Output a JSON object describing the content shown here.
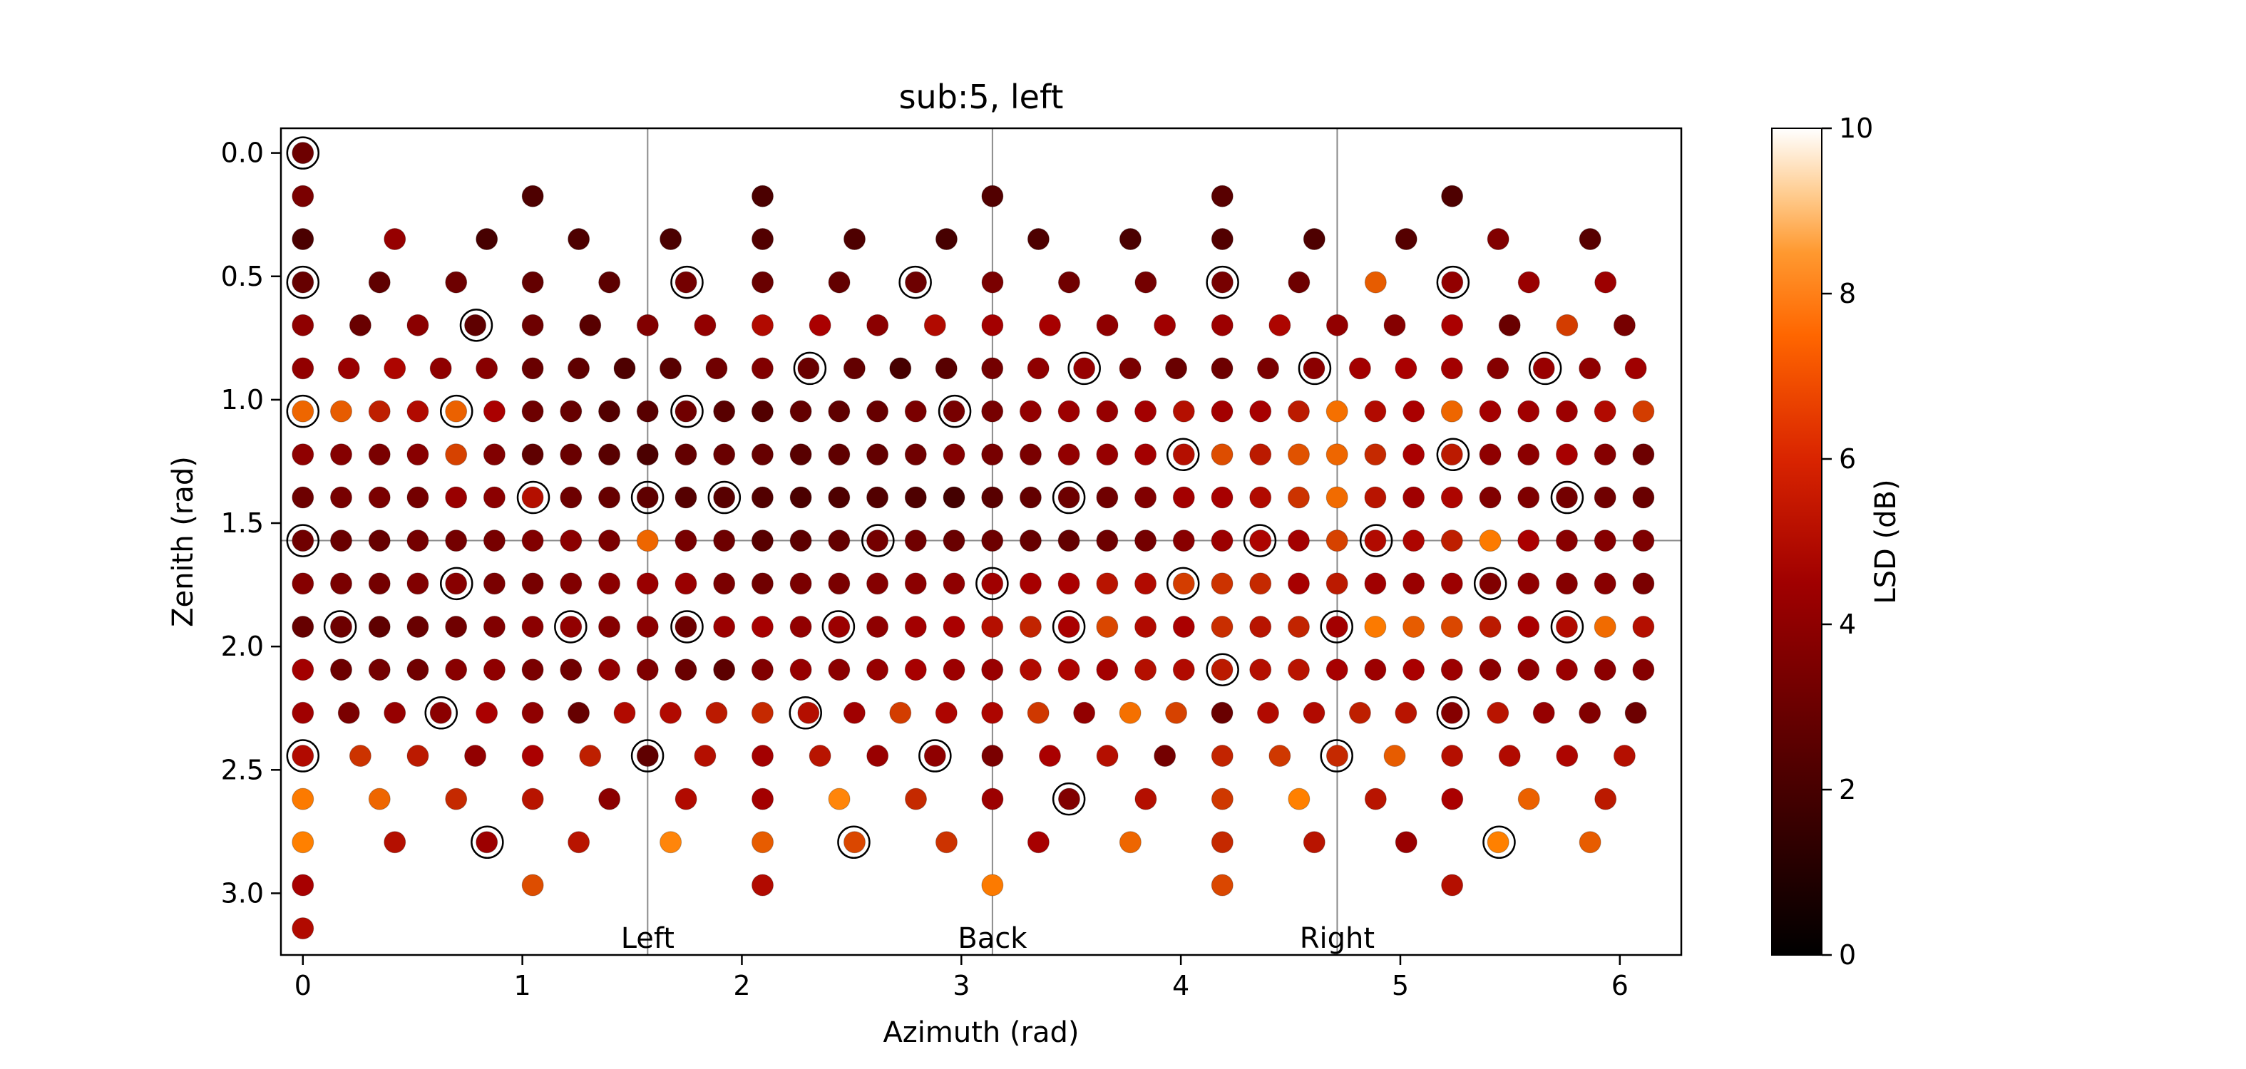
{
  "chart_data": {
    "type": "scatter",
    "title": "sub:5, left",
    "xlabel": "Azimuth (rad)",
    "ylabel": "Zenith (rad)",
    "xlim": [
      -0.1,
      6.28
    ],
    "ylim": [
      3.25,
      -0.1
    ],
    "y_inverted": true,
    "xticks": [
      0,
      1,
      2,
      3,
      4,
      5,
      6
    ],
    "yticks": [
      0.0,
      0.5,
      1.0,
      1.5,
      2.0,
      2.5,
      3.0
    ],
    "xtick_labels": [
      "0",
      "1",
      "2",
      "3",
      "4",
      "5",
      "6"
    ],
    "ytick_labels": [
      "0.0",
      "0.5",
      "1.0",
      "1.5",
      "2.0",
      "2.5",
      "3.0"
    ],
    "grid": false,
    "reference_lines": {
      "vertical": [
        1.5708,
        3.1416,
        4.7124
      ],
      "horizontal": [
        1.5708
      ]
    },
    "annotations": [
      {
        "text": "Left",
        "x": 1.5708,
        "y": 3.18
      },
      {
        "text": "Back",
        "x": 3.1416,
        "y": 3.18
      },
      {
        "text": "Right",
        "x": 4.7124,
        "y": 3.18
      }
    ],
    "colorbar": {
      "label": "LSD (dB)",
      "range": [
        0,
        10
      ],
      "ticks": [
        0,
        2,
        4,
        6,
        8,
        10
      ],
      "tick_labels": [
        "0",
        "2",
        "4",
        "6",
        "8",
        "10"
      ],
      "colormap": "gist_heat"
    },
    "highlighted_points": [
      [
        0.0,
        0.0
      ],
      [
        0.0,
        0.524
      ],
      [
        0.79,
        0.698
      ],
      [
        1.75,
        0.524
      ],
      [
        2.79,
        0.524
      ],
      [
        4.19,
        0.524
      ],
      [
        5.24,
        0.524
      ],
      [
        2.31,
        0.873
      ],
      [
        3.56,
        0.873
      ],
      [
        4.61,
        0.873
      ],
      [
        5.66,
        0.873
      ],
      [
        0.0,
        1.047
      ],
      [
        0.7,
        1.047
      ],
      [
        1.75,
        1.047
      ],
      [
        2.97,
        1.047
      ],
      [
        4.01,
        1.222
      ],
      [
        5.24,
        1.222
      ],
      [
        1.05,
        1.396
      ],
      [
        1.57,
        1.396
      ],
      [
        1.92,
        1.396
      ],
      [
        3.49,
        1.396
      ],
      [
        5.76,
        1.396
      ],
      [
        0.0,
        1.571
      ],
      [
        2.62,
        1.571
      ],
      [
        4.36,
        1.571
      ],
      [
        4.89,
        1.571
      ],
      [
        0.7,
        1.745
      ],
      [
        3.14,
        1.745
      ],
      [
        4.01,
        1.745
      ],
      [
        5.41,
        1.745
      ],
      [
        0.17,
        1.92
      ],
      [
        1.22,
        1.92
      ],
      [
        1.75,
        1.92
      ],
      [
        2.44,
        1.92
      ],
      [
        3.49,
        1.92
      ],
      [
        4.71,
        1.92
      ],
      [
        5.76,
        1.92
      ],
      [
        4.19,
        2.094
      ],
      [
        0.63,
        2.269
      ],
      [
        2.29,
        2.269
      ],
      [
        5.24,
        2.269
      ],
      [
        0.0,
        2.443
      ],
      [
        1.57,
        2.443
      ],
      [
        2.88,
        2.443
      ],
      [
        4.71,
        2.443
      ],
      [
        3.49,
        2.618
      ],
      [
        0.84,
        2.793
      ],
      [
        2.51,
        2.793
      ],
      [
        5.45,
        2.793
      ]
    ],
    "series": [
      {
        "rings": [
          {
            "zenith": 0.0,
            "azimuth_start": 0,
            "azimuth_step": 6.2832,
            "lsd": [
              3.2
            ]
          },
          {
            "zenith": 0.175,
            "azimuth_start": 0,
            "azimuth_step": 1.0472,
            "lsd": [
              3.6,
              2.3,
              2.2,
              2.4,
              2.6,
              2.3
            ]
          },
          {
            "zenith": 0.349,
            "azimuth_start": 0,
            "azimuth_step": 0.4189,
            "lsd": [
              2.2,
              4.4,
              2.1,
              2.3,
              2.2,
              2.4,
              2.3,
              2.1,
              2.3,
              2.2,
              2.4,
              2.3,
              2.5,
              3.8,
              2.6
            ]
          },
          {
            "zenith": 0.524,
            "azimuth_start": 0,
            "azimuth_step": 0.3491,
            "lsd": [
              3.0,
              2.8,
              3.2,
              2.9,
              2.7,
              3.4,
              3.1,
              2.9,
              3.2,
              3.6,
              3.3,
              3.4,
              3.5,
              3.2,
              6.8,
              4.3,
              4.5,
              4.6
            ]
          },
          {
            "zenith": 0.698,
            "azimuth_start": 0,
            "azimuth_step": 0.2618,
            "lsd": [
              4.2,
              3.1,
              4.1,
              2.8,
              3.2,
              2.6,
              3.8,
              4.3,
              5.2,
              5.0,
              4.1,
              5.2,
              4.8,
              4.9,
              4.2,
              4.7,
              4.6,
              5.1,
              4.3,
              3.9,
              5.0,
              3.1,
              6.2,
              3.5
            ]
          },
          {
            "zenith": 0.873,
            "azimuth_start": 0,
            "azimuth_step": 0.2094,
            "lsd": [
              4.3,
              4.5,
              5.1,
              4.2,
              4.0,
              3.1,
              2.8,
              2.3,
              2.6,
              3.3,
              3.8,
              3.1,
              2.9,
              2.1,
              2.6,
              3.4,
              4.2,
              4.4,
              3.6,
              3.1,
              3.2,
              3.6,
              4.1,
              4.8,
              5.0,
              4.8,
              3.9,
              4.5,
              4.2,
              4.7
            ]
          },
          {
            "zenith": 1.047,
            "azimuth_start": 0,
            "azimuth_step": 0.1745,
            "lsd": [
              7.0,
              6.8,
              5.6,
              5.2,
              6.9,
              5.0,
              3.2,
              3.0,
              2.4,
              2.6,
              3.3,
              2.6,
              2.4,
              2.9,
              2.8,
              3.0,
              3.6,
              3.5,
              3.5,
              4.3,
              4.6,
              4.4,
              4.8,
              5.3,
              4.8,
              4.9,
              5.5,
              7.2,
              5.2,
              5.0,
              7.0,
              4.8,
              4.7,
              4.6,
              5.2,
              6.2
            ]
          },
          {
            "zenith": 1.222,
            "azimuth_start": 0,
            "azimuth_step": 0.1745,
            "lsd": [
              4.2,
              3.9,
              3.6,
              4.0,
              6.3,
              3.8,
              2.8,
              3.1,
              2.6,
              2.2,
              2.9,
              3.1,
              3.0,
              2.6,
              2.8,
              2.9,
              3.3,
              3.9,
              3.5,
              3.6,
              4.3,
              4.4,
              4.8,
              5.3,
              6.5,
              5.5,
              6.6,
              7.0,
              5.8,
              5.0,
              5.5,
              4.2,
              4.1,
              4.9,
              3.9,
              3.2
            ]
          },
          {
            "zenith": 1.396,
            "azimuth_start": 0,
            "azimuth_step": 0.1745,
            "lsd": [
              3.2,
              3.5,
              3.6,
              3.4,
              4.5,
              4.1,
              5.3,
              3.2,
              3.0,
              2.8,
              2.5,
              2.6,
              2.4,
              2.2,
              2.3,
              2.4,
              2.3,
              2.0,
              2.6,
              2.9,
              3.2,
              3.3,
              3.8,
              4.8,
              4.9,
              5.2,
              6.0,
              7.1,
              5.4,
              4.7,
              5.1,
              3.8,
              3.7,
              3.4,
              3.3,
              3.1
            ]
          },
          {
            "zenith": 1.571,
            "azimuth_start": 0,
            "azimuth_step": 0.1745,
            "lsd": [
              3.3,
              3.1,
              3.0,
              3.4,
              3.4,
              3.5,
              3.8,
              4.1,
              3.6,
              7.0,
              3.5,
              3.2,
              2.6,
              2.7,
              2.9,
              3.4,
              3.3,
              3.1,
              3.2,
              3.0,
              2.9,
              3.2,
              3.4,
              4.0,
              4.6,
              5.1,
              4.8,
              6.3,
              5.2,
              5.1,
              5.6,
              7.4,
              5.0,
              4.0,
              3.9,
              3.7
            ]
          },
          {
            "zenith": 1.745,
            "azimuth_start": 0,
            "azimuth_step": 0.1745,
            "lsd": [
              3.9,
              3.6,
              3.4,
              3.8,
              4.0,
              3.6,
              3.5,
              3.8,
              4.1,
              4.5,
              4.5,
              3.6,
              3.3,
              3.6,
              3.6,
              3.9,
              4.1,
              4.2,
              4.7,
              4.9,
              5.0,
              5.4,
              5.2,
              6.2,
              6.0,
              5.8,
              4.9,
              5.5,
              4.7,
              4.5,
              4.6,
              3.8,
              4.2,
              3.9,
              4.0,
              3.6
            ]
          },
          {
            "zenith": 1.92,
            "azimuth_start": 0,
            "azimuth_step": 0.1745,
            "lsd": [
              3.0,
              3.2,
              2.8,
              3.1,
              3.3,
              3.8,
              4.1,
              4.3,
              3.9,
              4.1,
              3.2,
              4.6,
              4.9,
              4.3,
              4.6,
              4.2,
              4.8,
              5.0,
              5.3,
              5.7,
              5.0,
              6.4,
              5.2,
              5.0,
              5.9,
              5.4,
              5.7,
              4.8,
              7.4,
              6.8,
              6.4,
              5.5,
              5.0,
              5.2,
              7.1,
              5.3
            ]
          },
          {
            "zenith": 2.094,
            "azimuth_start": 0,
            "azimuth_step": 0.1745,
            "lsd": [
              4.8,
              3.2,
              3.4,
              3.3,
              4.0,
              4.2,
              3.6,
              3.3,
              4.3,
              3.7,
              3.1,
              2.7,
              3.8,
              4.4,
              4.1,
              4.4,
              4.9,
              4.6,
              4.5,
              5.2,
              5.1,
              4.8,
              5.3,
              5.2,
              5.5,
              5.3,
              5.4,
              4.9,
              4.6,
              5.0,
              4.6,
              4.1,
              4.2,
              4.5,
              4.1,
              3.9
            ]
          },
          {
            "zenith": 2.269,
            "azimuth_start": 0,
            "azimuth_step": 0.2094,
            "lsd": [
              4.7,
              3.6,
              4.4,
              4.1,
              5.0,
              4.2,
              3.0,
              5.2,
              5.2,
              5.5,
              5.8,
              5.3,
              4.7,
              6.2,
              5.1,
              5.1,
              6.1,
              4.3,
              7.2,
              6.3,
              3.1,
              5.2,
              5.2,
              5.6,
              5.4,
              3.9,
              5.4,
              4.4,
              3.8,
              3.2
            ]
          },
          {
            "zenith": 2.443,
            "azimuth_start": 0,
            "azimuth_step": 0.2618,
            "lsd": [
              5.2,
              6.0,
              5.5,
              4.3,
              5.0,
              5.6,
              2.8,
              5.3,
              4.8,
              5.4,
              4.5,
              4.2,
              3.6,
              5.0,
              5.3,
              3.4,
              5.7,
              6.1,
              5.8,
              6.8,
              5.3,
              5.2,
              5.1,
              5.3
            ]
          },
          {
            "zenith": 2.618,
            "azimuth_start": 0,
            "azimuth_step": 0.3491,
            "lsd": [
              7.4,
              7.0,
              5.8,
              5.4,
              4.1,
              5.2,
              4.8,
              7.6,
              5.8,
              4.6,
              3.8,
              5.3,
              6.1,
              7.5,
              5.4,
              5.0,
              6.9,
              5.5
            ]
          },
          {
            "zenith": 2.793,
            "azimuth_start": 0,
            "azimuth_step": 0.4189,
            "lsd": [
              7.5,
              5.3,
              4.6,
              5.4,
              7.6,
              6.8,
              6.4,
              6.0,
              4.9,
              7.0,
              5.8,
              5.4,
              4.5,
              7.5,
              6.8
            ]
          },
          {
            "zenith": 2.967,
            "azimuth_start": 0,
            "azimuth_step": 1.0472,
            "lsd": [
              4.9,
              6.5,
              5.2,
              7.4,
              6.4,
              5.3
            ]
          },
          {
            "zenith": 3.142,
            "azimuth_start": 0,
            "azimuth_step": 6.2832,
            "lsd": [
              5.2
            ]
          }
        ]
      }
    ]
  }
}
